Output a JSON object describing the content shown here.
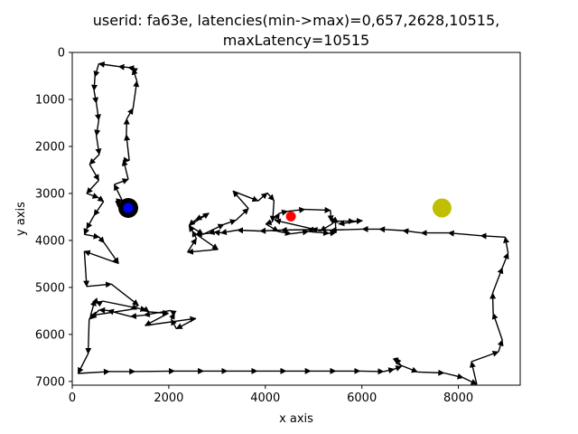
{
  "chart_data": {
    "type": "line",
    "title_lines": [
      "userid: fa63e, latencies(min->max)=0,657,2628,10515,",
      "maxLatency=10515"
    ],
    "xlabel": "x axis",
    "ylabel": "y axis",
    "xlim": [
      0,
      9280
    ],
    "ylim": [
      7080,
      0
    ],
    "y_inverted": true,
    "grid": false,
    "xticks": [
      0,
      2000,
      4000,
      6000,
      8000
    ],
    "xtick_labels": [
      "0",
      "2000",
      "4000",
      "6000",
      "8000"
    ],
    "yticks": [
      0,
      1000,
      2000,
      3000,
      4000,
      5000,
      6000,
      7000
    ],
    "ytick_labels": [
      "0",
      "1000",
      "2000",
      "3000",
      "4000",
      "5000",
      "6000",
      "7000"
    ],
    "path_color": "#000000",
    "path": [
      [
        1170,
        3310
      ],
      [
        1000,
        3260
      ],
      [
        900,
        3170
      ],
      [
        1030,
        3140
      ],
      [
        870,
        2810
      ],
      [
        1160,
        2700
      ],
      [
        1060,
        2290
      ],
      [
        1180,
        2300
      ],
      [
        1120,
        1750
      ],
      [
        1130,
        1410
      ],
      [
        1260,
        1190
      ],
      [
        1340,
        610
      ],
      [
        1260,
        350
      ],
      [
        1230,
        330
      ],
      [
        1160,
        320
      ],
      [
        960,
        300
      ],
      [
        550,
        240
      ],
      [
        470,
        520
      ],
      [
        450,
        810
      ],
      [
        500,
        1080
      ],
      [
        550,
        1440
      ],
      [
        500,
        1770
      ],
      [
        560,
        2170
      ],
      [
        360,
        2380
      ],
      [
        550,
        2720
      ],
      [
        300,
        3000
      ],
      [
        540,
        3090
      ],
      [
        650,
        3170
      ],
      [
        450,
        3470
      ],
      [
        300,
        3750
      ],
      [
        250,
        3870
      ],
      [
        560,
        3930
      ],
      [
        660,
        4050
      ],
      [
        960,
        4490
      ],
      [
        250,
        4230
      ],
      [
        300,
        4980
      ],
      [
        810,
        4930
      ],
      [
        1370,
        5380
      ],
      [
        1210,
        5470
      ],
      [
        380,
        5600
      ],
      [
        470,
        5270
      ],
      [
        540,
        5350
      ],
      [
        630,
        5290
      ],
      [
        1530,
        5480
      ],
      [
        1590,
        5520
      ],
      [
        1990,
        5550
      ],
      [
        1510,
        5810
      ],
      [
        2560,
        5660
      ],
      [
        2160,
        5880
      ],
      [
        2050,
        5680
      ],
      [
        2120,
        5550
      ],
      [
        2030,
        5490
      ],
      [
        1490,
        5590
      ],
      [
        1210,
        5620
      ],
      [
        740,
        5490
      ],
      [
        560,
        5480
      ],
      [
        350,
        5680
      ],
      [
        330,
        6410
      ],
      [
        120,
        6830
      ],
      [
        770,
        6790
      ],
      [
        1300,
        6790
      ],
      [
        2120,
        6780
      ],
      [
        2720,
        6780
      ],
      [
        3210,
        6780
      ],
      [
        3830,
        6780
      ],
      [
        4430,
        6780
      ],
      [
        4940,
        6780
      ],
      [
        5460,
        6780
      ],
      [
        5960,
        6780
      ],
      [
        6450,
        6790
      ],
      [
        6670,
        6740
      ],
      [
        6820,
        6680
      ],
      [
        6700,
        6500
      ],
      [
        6720,
        6620
      ],
      [
        7150,
        6800
      ],
      [
        7700,
        6820
      ],
      [
        8100,
        6920
      ],
      [
        8380,
        7060
      ],
      [
        8270,
        6580
      ],
      [
        8830,
        6370
      ],
      [
        8910,
        6120
      ],
      [
        8720,
        5550
      ],
      [
        8710,
        5120
      ],
      [
        8910,
        4580
      ],
      [
        9030,
        4270
      ],
      [
        8970,
        3930
      ],
      [
        8460,
        3900
      ],
      [
        7790,
        3840
      ],
      [
        7230,
        3840
      ],
      [
        6850,
        3790
      ],
      [
        6360,
        3760
      ],
      [
        6010,
        3760
      ],
      [
        5360,
        3780
      ],
      [
        4880,
        3770
      ],
      [
        4330,
        3780
      ],
      [
        3890,
        3800
      ],
      [
        3420,
        3780
      ],
      [
        3080,
        3840
      ],
      [
        2940,
        3820
      ],
      [
        2830,
        3850
      ],
      [
        2570,
        3870
      ],
      [
        3020,
        4190
      ],
      [
        2390,
        4250
      ],
      [
        2570,
        3960
      ],
      [
        2490,
        3800
      ],
      [
        2420,
        3690
      ],
      [
        2830,
        3420
      ],
      [
        2560,
        3560
      ],
      [
        2420,
        3680
      ],
      [
        2710,
        3870
      ],
      [
        3140,
        3660
      ],
      [
        3390,
        3570
      ],
      [
        3650,
        3320
      ],
      [
        3330,
        2950
      ],
      [
        3850,
        3160
      ],
      [
        4040,
        2990
      ],
      [
        4180,
        3150
      ],
      [
        4150,
        3600
      ],
      [
        4010,
        3650
      ],
      [
        4270,
        3810
      ],
      [
        4530,
        3860
      ],
      [
        4890,
        3810
      ],
      [
        5320,
        3850
      ],
      [
        5460,
        3830
      ],
      [
        5450,
        3510
      ],
      [
        5380,
        3650
      ],
      [
        5140,
        3800
      ],
      [
        4960,
        3750
      ],
      [
        4200,
        3570
      ],
      [
        4290,
        3420
      ],
      [
        4460,
        3380
      ],
      [
        4820,
        3340
      ],
      [
        5350,
        3360
      ],
      [
        5360,
        3590
      ],
      [
        5840,
        3590
      ],
      [
        6010,
        3580
      ],
      [
        5520,
        3650
      ]
    ],
    "markers": [
      {
        "role": "start-outer",
        "x": 1160,
        "y": 3310,
        "color": "#000000"
      },
      {
        "role": "start-inner",
        "x": 1160,
        "y": 3310,
        "color": "#0000ff"
      },
      {
        "role": "endpoint",
        "x": 4530,
        "y": 3490,
        "color": "#ff0000"
      },
      {
        "role": "target",
        "x": 7660,
        "y": 3310,
        "color": "#bfbf00"
      }
    ]
  }
}
